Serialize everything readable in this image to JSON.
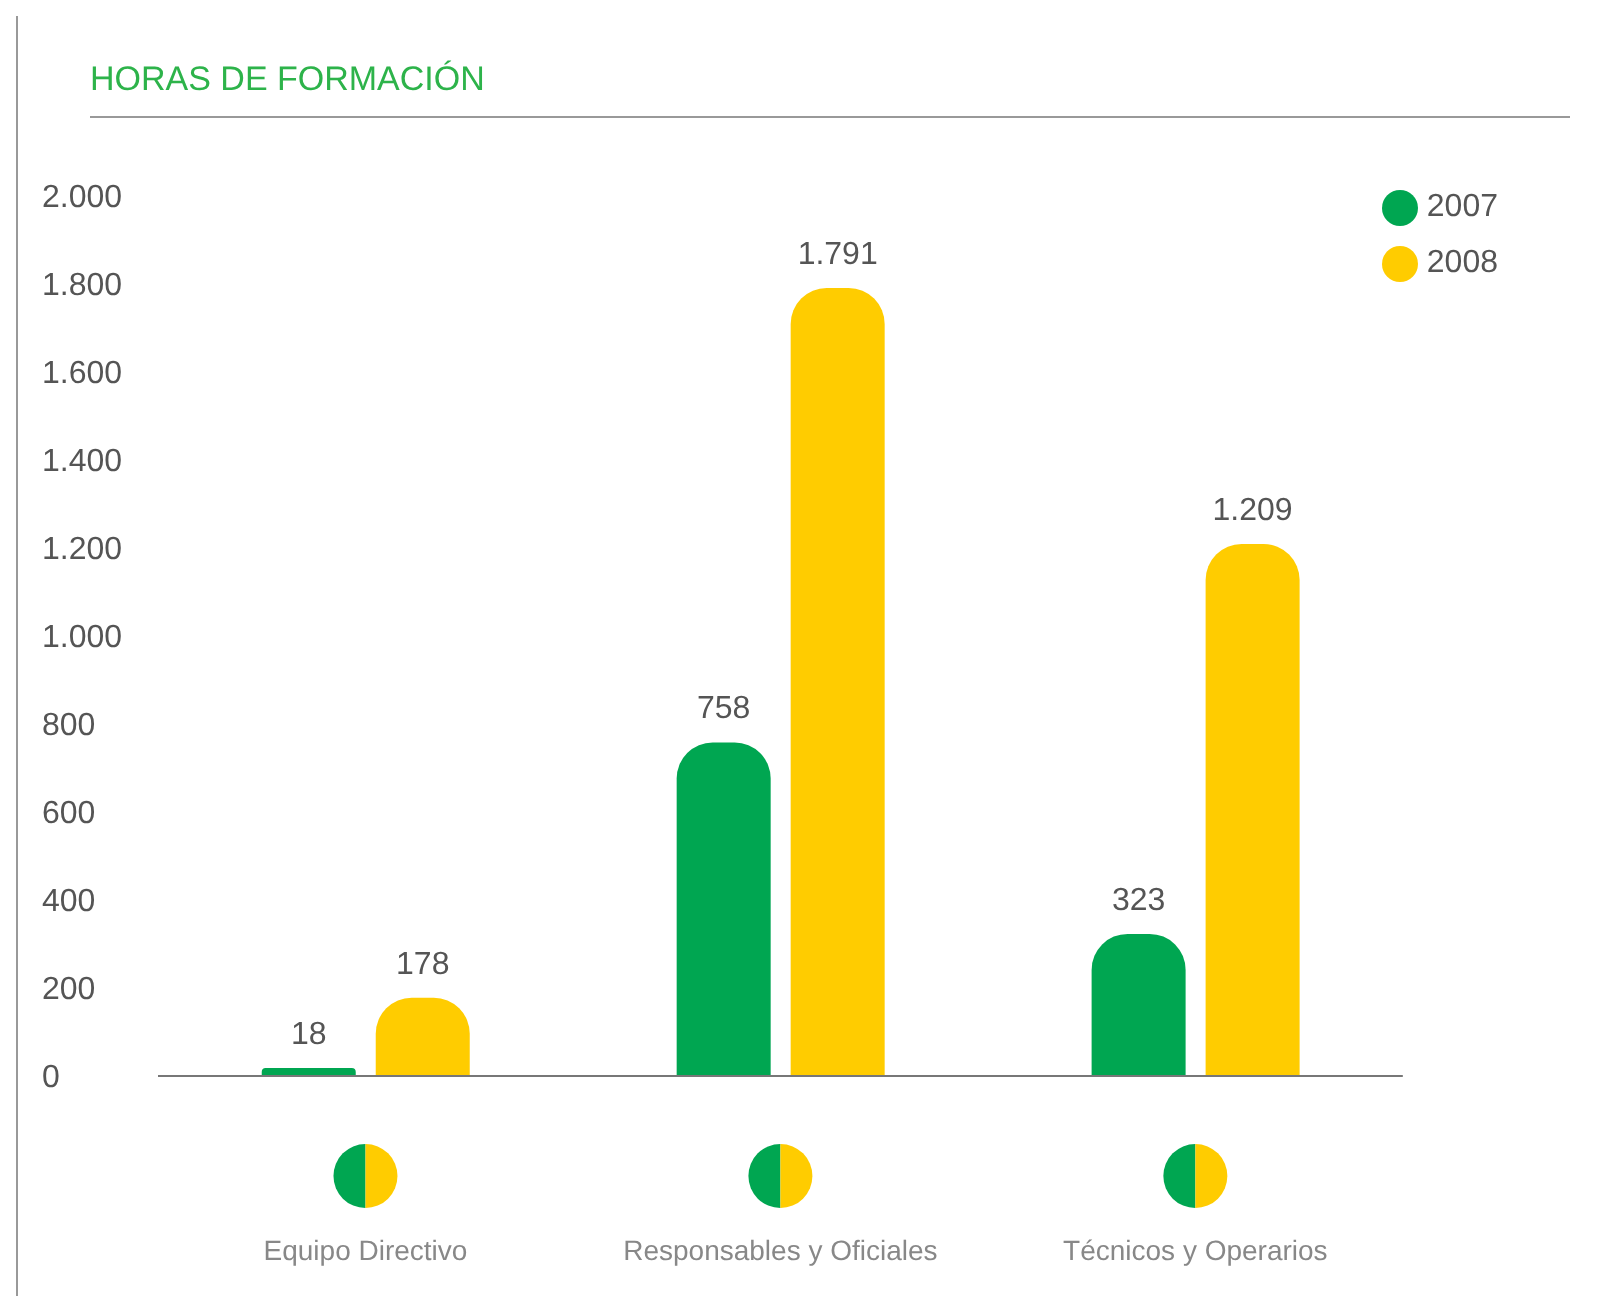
{
  "chart_data": {
    "type": "bar",
    "title": "HORAS DE FORMACIÓN",
    "categories": [
      "Equipo Directivo",
      "Responsables y Oficiales",
      "Técnicos y Operarios"
    ],
    "series": [
      {
        "name": "2007",
        "color": "#00a651",
        "values": [
          18,
          758,
          323
        ],
        "value_labels": [
          "18",
          "758",
          "323"
        ]
      },
      {
        "name": "2008",
        "color": "#ffcc00",
        "values": [
          178,
          1791,
          1209
        ],
        "value_labels": [
          "178",
          "1.791",
          "1.209"
        ]
      }
    ],
    "ylim": [
      0,
      2000
    ],
    "yticks": [
      {
        "value": 0,
        "label": "0"
      },
      {
        "value": 200,
        "label": "200"
      },
      {
        "value": 400,
        "label": "400"
      },
      {
        "value": 600,
        "label": "600"
      },
      {
        "value": 800,
        "label": "800"
      },
      {
        "value": 1000,
        "label": "1.000"
      },
      {
        "value": 1200,
        "label": "1.200"
      },
      {
        "value": 1400,
        "label": "1.400"
      },
      {
        "value": 1600,
        "label": "1.600"
      },
      {
        "value": 1800,
        "label": "1.800"
      },
      {
        "value": 2000,
        "label": "2.000"
      }
    ],
    "grid": false,
    "legend": "top right"
  }
}
